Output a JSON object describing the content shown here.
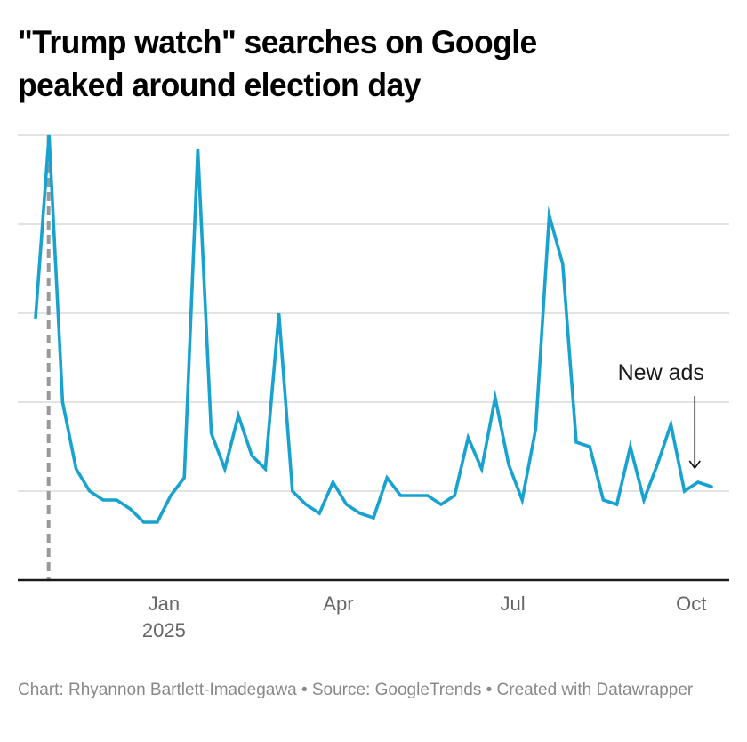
{
  "header": {
    "title_line1": "\"Trump watch\" searches on Google",
    "title_line2": "peaked around election day"
  },
  "footer": {
    "credit": "Chart: Rhyannon Bartlett-Imadegawa • Source: GoogleTrends • Created with Datawrapper"
  },
  "colors": {
    "line": "#18a2cf",
    "grid": "#e3e3e3",
    "baseline": "#1a1a1a",
    "election_marker": "#999999",
    "axis_text": "#666666",
    "footer_text": "#888888"
  },
  "chart_data": {
    "type": "line",
    "title": "\"Trump watch\" searches on Google peaked around election day",
    "xlabel": "",
    "ylabel": "",
    "ylim": [
      0,
      100
    ],
    "y_gridlines": [
      0,
      20,
      40,
      60,
      80,
      100
    ],
    "y_tick_labels_shown": false,
    "grid": true,
    "x_unit": "week",
    "x_start": "2024-10-27",
    "x_ticks": [
      {
        "label": "Jan",
        "sublabel": "2025",
        "week_index": 9.5
      },
      {
        "label": "Apr",
        "sublabel": "",
        "week_index": 22.4
      },
      {
        "label": "Jul",
        "sublabel": "",
        "week_index": 35.3
      },
      {
        "label": "Oct",
        "sublabel": "",
        "week_index": 48.5
      }
    ],
    "series": [
      {
        "name": "Trump watch",
        "values": [
          59,
          100,
          40,
          25,
          20,
          18,
          18,
          16,
          13,
          13,
          19,
          23,
          97,
          33,
          25,
          37,
          28,
          25,
          60,
          20,
          17,
          15,
          22,
          17,
          15,
          14,
          23,
          19,
          19,
          19,
          17,
          19,
          32,
          25,
          41,
          26,
          18,
          34,
          82,
          71,
          31,
          30,
          18,
          17,
          30,
          18,
          26,
          35,
          20,
          22,
          21
        ]
      }
    ],
    "reference_lines": [
      {
        "name": "Election day",
        "week_index": 1,
        "style": "dashed"
      }
    ],
    "annotations": [
      {
        "text": "New ads",
        "week_index": 48.8,
        "target_value": 25,
        "arrow": "down"
      }
    ]
  }
}
